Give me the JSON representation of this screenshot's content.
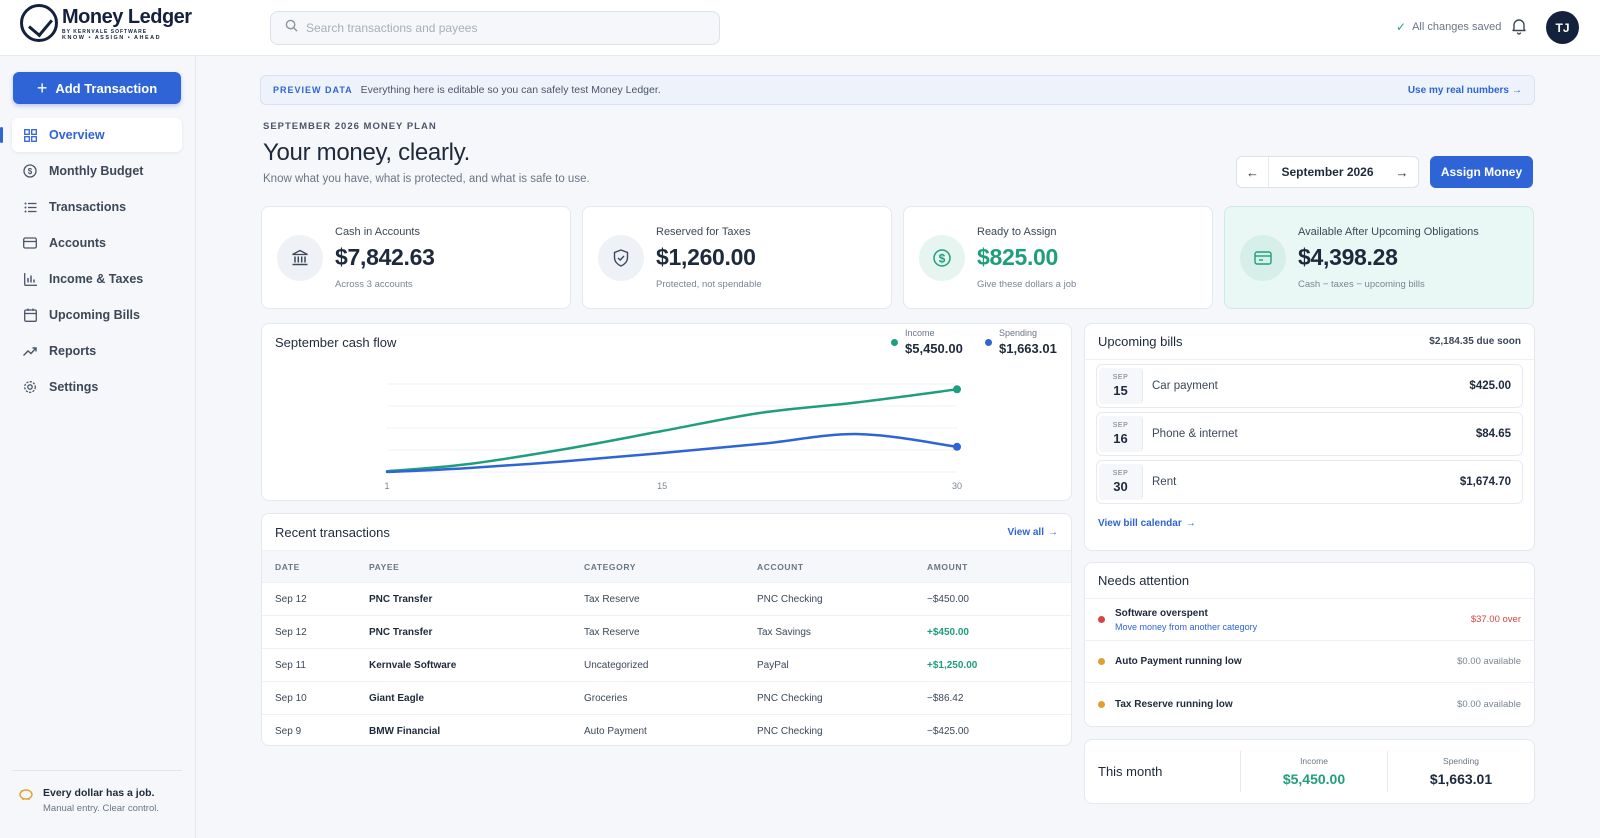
{
  "app": {
    "name": "Money Ledger",
    "sub_brand": "BY KERNVALE SOFTWARE",
    "tagline": "KNOW • ASSIGN • AHEAD"
  },
  "topbar": {
    "search_placeholder": "Search transactions and payees",
    "saved_status": "All changes saved",
    "avatar_initials": "TJ"
  },
  "sidebar": {
    "add_label": "Add Transaction",
    "items": [
      {
        "label": "Overview",
        "icon": "grid-icon",
        "active": true
      },
      {
        "label": "Monthly Budget",
        "icon": "dollar-circle-icon"
      },
      {
        "label": "Transactions",
        "icon": "list-icon"
      },
      {
        "label": "Accounts",
        "icon": "card-icon"
      },
      {
        "label": "Income & Taxes",
        "icon": "bar-chart-icon"
      },
      {
        "label": "Upcoming Bills",
        "icon": "calendar-icon"
      },
      {
        "label": "Reports",
        "icon": "trend-icon"
      },
      {
        "label": "Settings",
        "icon": "gear-icon"
      }
    ],
    "footer_title": "Every dollar has a job.",
    "footer_sub": "Manual entry. Clear control."
  },
  "banner": {
    "tag": "PREVIEW DATA",
    "message": "Everything here is editable so you can safely test Money Ledger.",
    "link": "Use my real numbers"
  },
  "page": {
    "eyebrow": "SEPTEMBER 2026 MONEY PLAN",
    "title": "Your money, clearly.",
    "subtitle": "Know what you have, what is protected, and what is safe to use.",
    "month": "September 2026",
    "assign_label": "Assign Money"
  },
  "kpis": [
    {
      "label": "Cash in Accounts",
      "value": "$7,842.63",
      "note": "Across 3 accounts",
      "icon": "bank-icon"
    },
    {
      "label": "Reserved for Taxes",
      "value": "$1,260.00",
      "note": "Protected, not spendable",
      "icon": "shield-icon"
    },
    {
      "label": "Ready to Assign",
      "value": "$825.00",
      "note": "Give these dollars a job",
      "icon": "dollar-circle-icon"
    },
    {
      "label": "Available After Upcoming Obligations",
      "value": "$4,398.28",
      "note": "Cash − taxes − upcoming bills",
      "icon": "wallet-icon"
    }
  ],
  "cashflow": {
    "title": "September cash flow",
    "income_label": "Income",
    "income_value": "$5,450.00",
    "spending_label": "Spending",
    "spending_value": "$1,663.01"
  },
  "chart_data": {
    "type": "line",
    "title": "September cash flow",
    "x_ticks": [
      "1",
      "15",
      "30"
    ],
    "x": [
      1,
      5,
      10,
      15,
      20,
      25,
      30
    ],
    "series": [
      {
        "name": "Income",
        "color": "#1f9e7d",
        "values": [
          50,
          500,
          1500,
          2700,
          3900,
          4600,
          5450
        ]
      },
      {
        "name": "Spending",
        "color": "#2f64d6",
        "values": [
          0,
          250,
          700,
          1250,
          1850,
          2500,
          1663.01
        ]
      }
    ],
    "ylim": [
      0,
      5800
    ],
    "grid": true
  },
  "transactions": {
    "title": "Recent transactions",
    "view_all": "View all",
    "columns": [
      "DATE",
      "PAYEE",
      "CATEGORY",
      "ACCOUNT",
      "AMOUNT"
    ],
    "rows": [
      {
        "date": "Sep 12",
        "payee": "PNC Transfer",
        "category": "Tax Reserve",
        "account": "PNC Checking",
        "amount": "−$450.00",
        "positive": false
      },
      {
        "date": "Sep 12",
        "payee": "PNC Transfer",
        "category": "Tax Reserve",
        "account": "Tax Savings",
        "amount": "+$450.00",
        "positive": true
      },
      {
        "date": "Sep 11",
        "payee": "Kernvale Software",
        "category": "Uncategorized",
        "account": "PayPal",
        "amount": "+$1,250.00",
        "positive": true
      },
      {
        "date": "Sep 10",
        "payee": "Giant Eagle",
        "category": "Groceries",
        "account": "PNC Checking",
        "amount": "−$86.42",
        "positive": false
      },
      {
        "date": "Sep 9",
        "payee": "BMW Financial",
        "category": "Auto Payment",
        "account": "PNC Checking",
        "amount": "−$425.00",
        "positive": false
      }
    ]
  },
  "bills": {
    "title": "Upcoming bills",
    "due": "$2,184.35 due soon",
    "items": [
      {
        "month": "SEP",
        "day": "15",
        "name": "Car payment",
        "amount": "$425.00"
      },
      {
        "month": "SEP",
        "day": "16",
        "name": "Phone & internet",
        "amount": "$84.65"
      },
      {
        "month": "SEP",
        "day": "30",
        "name": "Rent",
        "amount": "$1,674.70"
      }
    ],
    "link": "View bill calendar"
  },
  "attention": {
    "title": "Needs attention",
    "items": [
      {
        "title": "Software overspent",
        "sub": "Move money from another category",
        "value": "$37.00 over",
        "color": "#d64545"
      },
      {
        "title": "Auto Payment running low",
        "sub": "",
        "value": "$0.00 available",
        "color": "#e0a030"
      },
      {
        "title": "Tax Reserve running low",
        "sub": "",
        "value": "$0.00 available",
        "color": "#e0a030"
      }
    ]
  },
  "this_month": {
    "title": "This month",
    "income_label": "Income",
    "income_value": "$5,450.00",
    "spending_label": "Spending",
    "spending_value": "$1,663.01"
  }
}
